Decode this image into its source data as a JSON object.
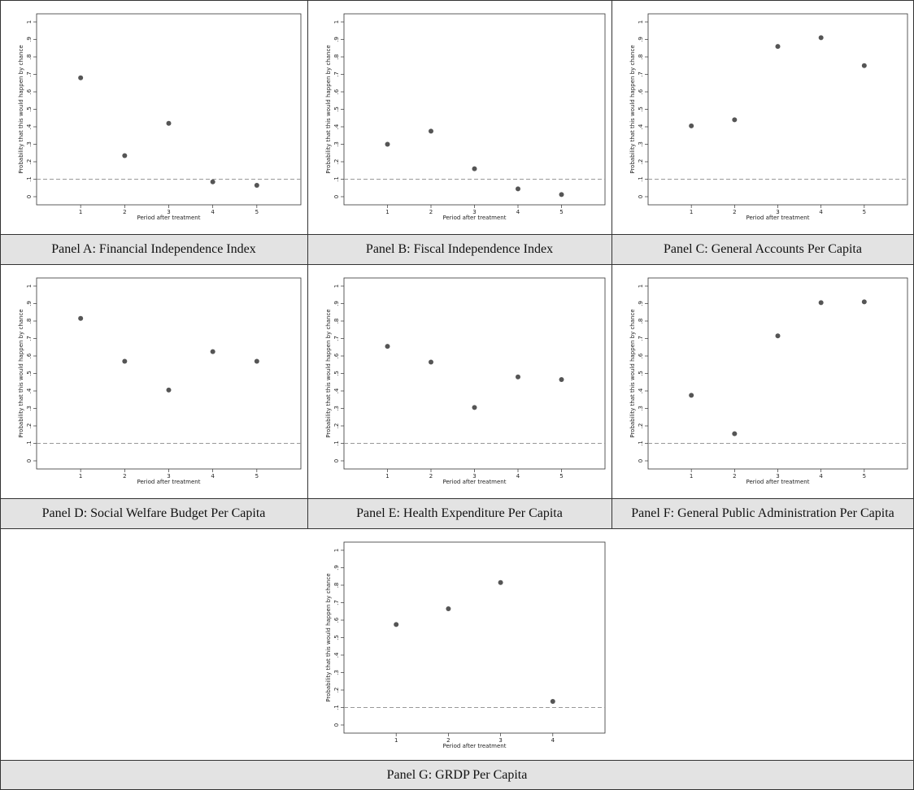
{
  "chart_data": [
    {
      "type": "scatter",
      "title": "Panel A: Financial Independence Index",
      "xlabel": "Period after treatment",
      "ylabel": "Probability that this would happen by chance",
      "x": [
        1,
        2,
        3,
        4,
        5
      ],
      "values": [
        0.68,
        0.235,
        0.42,
        0.085,
        0.065
      ],
      "color": "#555555",
      "xlim": [
        0,
        6
      ],
      "ylim": [
        0,
        1
      ],
      "xticks": [
        1,
        2,
        3,
        4,
        5
      ],
      "yticks": [
        0,
        {
          "value": 0.1,
          "label": ".1"
        },
        {
          "value": 0.2,
          "label": ".2"
        },
        {
          "value": 0.3,
          "label": ".3"
        },
        {
          "value": 0.4,
          "label": ".4"
        },
        {
          "value": 0.5,
          "label": ".5"
        },
        {
          "value": 0.6,
          "label": ".6"
        },
        {
          "value": 0.7,
          "label": ".7"
        },
        {
          "value": 0.8,
          "label": ".8"
        },
        {
          "value": 0.9,
          "label": ".9"
        },
        1
      ],
      "hline": 0.1
    },
    {
      "type": "scatter",
      "title": "Panel B: Fiscal Independence Index",
      "xlabel": "Period after treatment",
      "ylabel": "Probability that this would happen by chance",
      "x": [
        1,
        2,
        3,
        4,
        5
      ],
      "values": [
        0.3,
        0.375,
        0.16,
        0.045,
        0.012
      ],
      "color": "#555555",
      "xlim": [
        0,
        6
      ],
      "ylim": [
        0,
        1
      ],
      "xticks": [
        1,
        2,
        3,
        4,
        5
      ],
      "yticks": [
        0,
        {
          "value": 0.1,
          "label": ".1"
        },
        {
          "value": 0.2,
          "label": ".2"
        },
        {
          "value": 0.3,
          "label": ".3"
        },
        {
          "value": 0.4,
          "label": ".4"
        },
        {
          "value": 0.5,
          "label": ".5"
        },
        {
          "value": 0.6,
          "label": ".6"
        },
        {
          "value": 0.7,
          "label": ".7"
        },
        {
          "value": 0.8,
          "label": ".8"
        },
        {
          "value": 0.9,
          "label": ".9"
        },
        1
      ],
      "hline": 0.1
    },
    {
      "type": "scatter",
      "title": "Panel C: General Accounts Per Capita",
      "xlabel": "Period after treatment",
      "ylabel": "Probability that this would happen by chance",
      "x": [
        1,
        2,
        3,
        4,
        5
      ],
      "values": [
        0.405,
        0.44,
        0.86,
        0.91,
        0.75
      ],
      "color": "#555555",
      "xlim": [
        0,
        6
      ],
      "ylim": [
        0,
        1
      ],
      "xticks": [
        1,
        2,
        3,
        4,
        5
      ],
      "yticks": [
        0,
        {
          "value": 0.1,
          "label": ".1"
        },
        {
          "value": 0.2,
          "label": ".2"
        },
        {
          "value": 0.3,
          "label": ".3"
        },
        {
          "value": 0.4,
          "label": ".4"
        },
        {
          "value": 0.5,
          "label": ".5"
        },
        {
          "value": 0.6,
          "label": ".6"
        },
        {
          "value": 0.7,
          "label": ".7"
        },
        {
          "value": 0.8,
          "label": ".8"
        },
        {
          "value": 0.9,
          "label": ".9"
        },
        1
      ],
      "hline": 0.1
    },
    {
      "type": "scatter",
      "title": "Panel D: Social Welfare Budget Per Capita",
      "xlabel": "Period after treatment",
      "ylabel": "Probability that this would happen by chance",
      "x": [
        1,
        2,
        3,
        4,
        5
      ],
      "values": [
        0.815,
        0.57,
        0.405,
        0.625,
        0.57
      ],
      "color": "#555555",
      "xlim": [
        0,
        6
      ],
      "ylim": [
        0,
        1
      ],
      "xticks": [
        1,
        2,
        3,
        4,
        5
      ],
      "yticks": [
        0,
        {
          "value": 0.1,
          "label": ".1"
        },
        {
          "value": 0.2,
          "label": ".2"
        },
        {
          "value": 0.3,
          "label": ".3"
        },
        {
          "value": 0.4,
          "label": ".4"
        },
        {
          "value": 0.5,
          "label": ".5"
        },
        {
          "value": 0.6,
          "label": ".6"
        },
        {
          "value": 0.7,
          "label": ".7"
        },
        {
          "value": 0.8,
          "label": ".8"
        },
        {
          "value": 0.9,
          "label": ".9"
        },
        1
      ],
      "hline": 0.1
    },
    {
      "type": "scatter",
      "title": "Panel E: Health Expenditure Per Capita",
      "xlabel": "Period after treatment",
      "ylabel": "Probability that this would happen by chance",
      "x": [
        1,
        2,
        3,
        4,
        5
      ],
      "values": [
        0.655,
        0.565,
        0.305,
        0.48,
        0.465
      ],
      "color": "#555555",
      "xlim": [
        0,
        6
      ],
      "ylim": [
        0,
        1
      ],
      "xticks": [
        1,
        2,
        3,
        4,
        5
      ],
      "yticks": [
        0,
        {
          "value": 0.1,
          "label": ".1"
        },
        {
          "value": 0.2,
          "label": ".2"
        },
        {
          "value": 0.3,
          "label": ".3"
        },
        {
          "value": 0.4,
          "label": ".4"
        },
        {
          "value": 0.5,
          "label": ".5"
        },
        {
          "value": 0.6,
          "label": ".6"
        },
        {
          "value": 0.7,
          "label": ".7"
        },
        {
          "value": 0.8,
          "label": ".8"
        },
        {
          "value": 0.9,
          "label": ".9"
        },
        1
      ],
      "hline": 0.1
    },
    {
      "type": "scatter",
      "title": "Panel F: General Public Administration Per Capita",
      "xlabel": "Period after treatment",
      "ylabel": "Probability that this would happen by chance",
      "x": [
        1,
        2,
        3,
        4,
        5
      ],
      "values": [
        0.375,
        0.155,
        0.715,
        0.905,
        0.91
      ],
      "color": "#555555",
      "xlim": [
        0,
        6
      ],
      "ylim": [
        0,
        1
      ],
      "xticks": [
        1,
        2,
        3,
        4,
        5
      ],
      "yticks": [
        0,
        {
          "value": 0.1,
          "label": ".1"
        },
        {
          "value": 0.2,
          "label": ".2"
        },
        {
          "value": 0.3,
          "label": ".3"
        },
        {
          "value": 0.4,
          "label": ".4"
        },
        {
          "value": 0.5,
          "label": ".5"
        },
        {
          "value": 0.6,
          "label": ".6"
        },
        {
          "value": 0.7,
          "label": ".7"
        },
        {
          "value": 0.8,
          "label": ".8"
        },
        {
          "value": 0.9,
          "label": ".9"
        },
        1
      ],
      "hline": 0.1
    },
    {
      "type": "scatter",
      "title": "Panel G: GRDP Per Capita",
      "xlabel": "Period after treatment",
      "ylabel": "Probability that this would happen by chance",
      "x": [
        1,
        2,
        3,
        4
      ],
      "values": [
        0.575,
        0.665,
        0.815,
        0.135
      ],
      "color": "#555555",
      "xlim": [
        0,
        5
      ],
      "ylim": [
        0,
        1
      ],
      "xticks": [
        1,
        2,
        3,
        4
      ],
      "yticks": [
        0,
        {
          "value": 0.1,
          "label": ".1"
        },
        {
          "value": 0.2,
          "label": ".2"
        },
        {
          "value": 0.3,
          "label": ".3"
        },
        {
          "value": 0.4,
          "label": ".4"
        },
        {
          "value": 0.5,
          "label": ".5"
        },
        {
          "value": 0.6,
          "label": ".6"
        },
        {
          "value": 0.7,
          "label": ".7"
        },
        {
          "value": 0.8,
          "label": ".8"
        },
        {
          "value": 0.9,
          "label": ".9"
        },
        1
      ],
      "hline": 0.1
    }
  ]
}
